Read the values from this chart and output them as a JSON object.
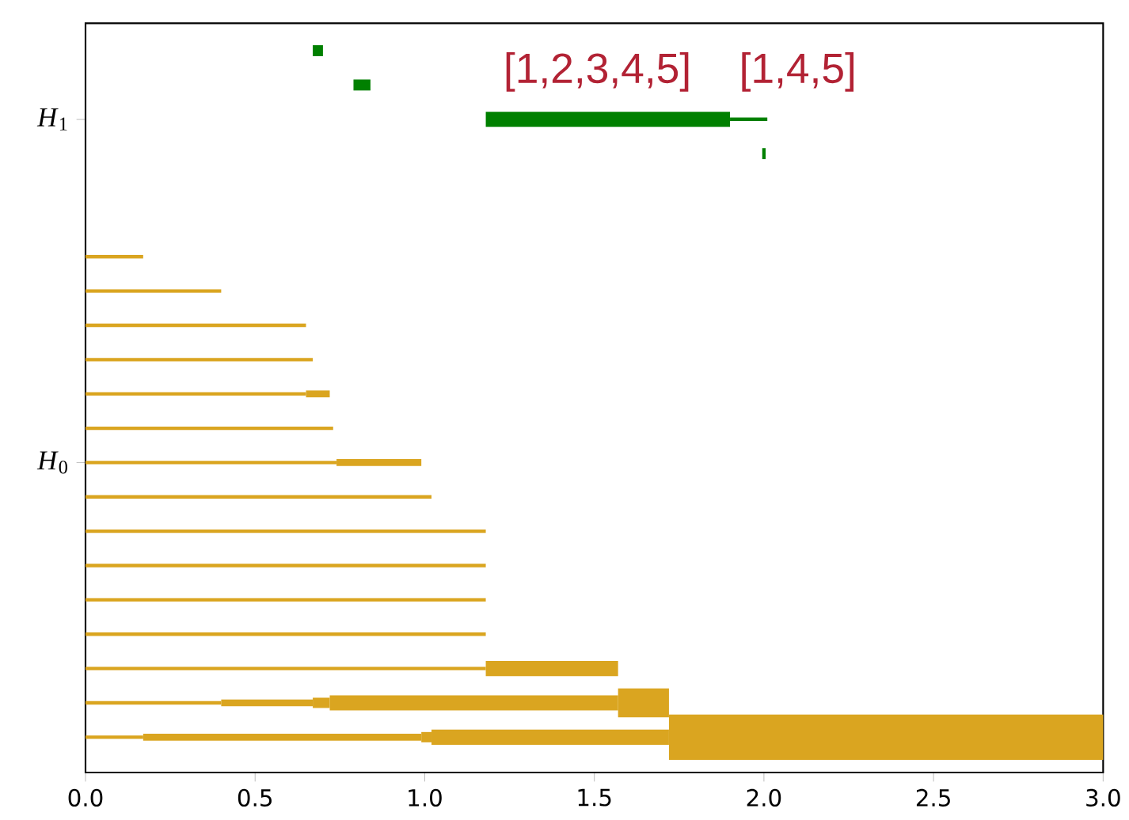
{
  "chart_data": {
    "type": "bar",
    "orientation": "horizontal",
    "categories": [
      null,
      null,
      "*H*$_{1}$",
      null,
      null,
      null,
      null,
      null,
      null,
      null,
      null,
      null,
      "*H*$_{0}$",
      null,
      null,
      null,
      null,
      null,
      null,
      null,
      null
    ],
    "series": [
      {
        "color": "#008000",
        "base": [
          null,
          null,
          1.9,
          null,
          null,
          null,
          null,
          null,
          null,
          null,
          null,
          null,
          null,
          null,
          null,
          null,
          null,
          null,
          null,
          null,
          null
        ],
        "values": [
          null,
          null,
          0.11,
          null,
          null,
          null,
          null,
          null,
          null,
          null,
          null,
          null,
          null,
          null,
          null,
          null,
          null,
          null,
          null,
          null,
          null
        ]
      },
      {
        "color": "#008000",
        "base": [
          0.67,
          0.79,
          null,
          1.995,
          null,
          null,
          null,
          null,
          null,
          null,
          null,
          null,
          null,
          null,
          null,
          null,
          null,
          null,
          null,
          null,
          null
        ],
        "values": [
          0.03,
          0.05,
          null,
          0.01,
          null,
          null,
          null,
          null,
          null,
          null,
          null,
          null,
          null,
          null,
          null,
          null,
          null,
          null,
          null,
          null,
          null
        ]
      },
      {
        "color": "#008000",
        "base": [
          null,
          null,
          1.18,
          null,
          null,
          null,
          null,
          null,
          null,
          null,
          null,
          null,
          null,
          null,
          null,
          null,
          null,
          null,
          null,
          null,
          null
        ],
        "values": [
          null,
          null,
          0.72,
          null,
          null,
          null,
          null,
          null,
          null,
          null,
          null,
          null,
          null,
          null,
          null,
          null,
          null,
          null,
          null,
          null,
          null
        ]
      },
      {
        "color": "#daa520",
        "base": [
          null,
          null,
          null,
          null,
          null,
          null,
          0,
          0,
          0,
          0,
          0,
          0,
          0,
          0,
          0,
          0,
          0,
          0,
          0,
          0,
          0
        ],
        "values": [
          null,
          null,
          null,
          null,
          null,
          null,
          0.17,
          0.4,
          0.65,
          0.67,
          0.65,
          0.73,
          0.74,
          1.02,
          1.18,
          1.18,
          1.18,
          1.18,
          1.18,
          0.4,
          0.17
        ]
      },
      {
        "color": "#daa520",
        "base": [
          null,
          null,
          null,
          null,
          null,
          null,
          null,
          null,
          null,
          null,
          0.65,
          null,
          0.74,
          null,
          null,
          null,
          null,
          null,
          null,
          0.4,
          0.17
        ],
        "values": [
          null,
          null,
          null,
          null,
          null,
          null,
          null,
          null,
          null,
          null,
          0.07,
          null,
          0.25,
          null,
          null,
          null,
          null,
          null,
          null,
          0.27,
          0.82
        ]
      },
      {
        "color": "#daa520",
        "base": [
          null,
          null,
          null,
          null,
          null,
          null,
          null,
          null,
          null,
          null,
          null,
          null,
          null,
          null,
          null,
          null,
          null,
          null,
          null,
          0.67,
          0.99
        ],
        "values": [
          null,
          null,
          null,
          null,
          null,
          null,
          null,
          null,
          null,
          null,
          null,
          null,
          null,
          null,
          null,
          null,
          null,
          null,
          null,
          0.05,
          0.03
        ]
      },
      {
        "color": "#daa520",
        "base": [
          null,
          null,
          null,
          null,
          null,
          null,
          null,
          null,
          null,
          null,
          null,
          null,
          null,
          null,
          null,
          null,
          null,
          null,
          1.18,
          0.72,
          1.02
        ],
        "values": [
          null,
          null,
          null,
          null,
          null,
          null,
          null,
          null,
          null,
          null,
          null,
          null,
          null,
          null,
          null,
          null,
          null,
          null,
          0.39,
          0.85,
          0.7
        ]
      },
      {
        "color": "#daa520",
        "base": [
          null,
          null,
          null,
          null,
          null,
          null,
          null,
          null,
          null,
          null,
          null,
          null,
          null,
          null,
          null,
          null,
          null,
          null,
          null,
          1.57,
          null
        ],
        "values": [
          null,
          null,
          null,
          null,
          null,
          null,
          null,
          null,
          null,
          null,
          null,
          null,
          null,
          null,
          null,
          null,
          null,
          null,
          null,
          0.15,
          null
        ]
      },
      {
        "color": "#daa520",
        "base": [
          null,
          null,
          null,
          null,
          null,
          null,
          null,
          null,
          null,
          null,
          null,
          null,
          null,
          null,
          null,
          null,
          null,
          null,
          null,
          null,
          1.72
        ],
        "values": [
          null,
          null,
          null,
          null,
          null,
          null,
          null,
          null,
          null,
          null,
          null,
          null,
          null,
          null,
          null,
          null,
          null,
          null,
          null,
          null,
          1.28
        ]
      }
    ],
    "xlim": [
      0,
      3
    ],
    "xticks": [
      {
        "value": 0,
        "label": "0.0"
      },
      {
        "value": 0.5,
        "label": "0.5"
      },
      {
        "value": 1,
        "label": "1.0"
      },
      {
        "value": 1.5,
        "label": "1.5"
      },
      {
        "value": 2,
        "label": "2.0"
      },
      {
        "value": 2.5,
        "label": "2.5"
      },
      {
        "value": 3,
        "label": "3.0"
      }
    ],
    "annotations": [
      "[1,2,3,4,5]",
      "[1,4,5]"
    ]
  }
}
